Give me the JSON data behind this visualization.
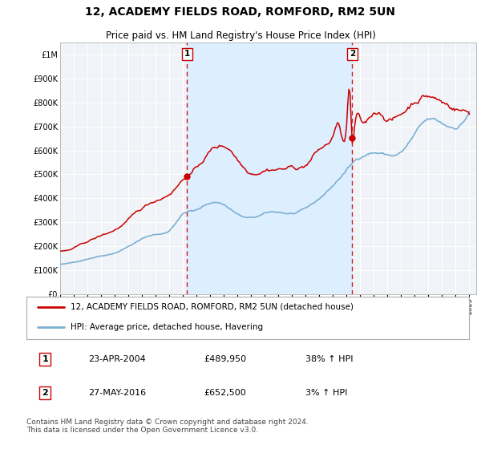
{
  "title": "12, ACADEMY FIELDS ROAD, ROMFORD, RM2 5UN",
  "subtitle": "Price paid vs. HM Land Registry's House Price Index (HPI)",
  "ylim": [
    0,
    1050000
  ],
  "yticks": [
    0,
    100000,
    200000,
    300000,
    400000,
    500000,
    600000,
    700000,
    800000,
    900000,
    1000000
  ],
  "ytick_labels": [
    "£0",
    "£100K",
    "£200K",
    "£300K",
    "£400K",
    "£500K",
    "£600K",
    "£700K",
    "£800K",
    "£900K",
    "£1M"
  ],
  "plot_bg_color": "#f0f4f8",
  "shade_color": "#ddeeff",
  "grid_color": "#ffffff",
  "red_line_color": "#cc0000",
  "blue_line_color": "#7ab0d4",
  "sale1_year": 2004.31,
  "sale1_price": 489950,
  "sale1_label": "1",
  "sale1_date": "23-APR-2004",
  "sale1_price_str": "£489,950",
  "sale1_hpi_pct": "38% ↑ HPI",
  "sale2_year": 2016.41,
  "sale2_price": 652500,
  "sale2_label": "2",
  "sale2_date": "27-MAY-2016",
  "sale2_price_str": "£652,500",
  "sale2_hpi_pct": "3% ↑ HPI",
  "legend_red": "12, ACADEMY FIELDS ROAD, ROMFORD, RM2 5UN (detached house)",
  "legend_blue": "HPI: Average price, detached house, Havering",
  "footer": "Contains HM Land Registry data © Crown copyright and database right 2024.\nThis data is licensed under the Open Government Licence v3.0.",
  "xmin": 1995.0,
  "xmax": 2025.5
}
